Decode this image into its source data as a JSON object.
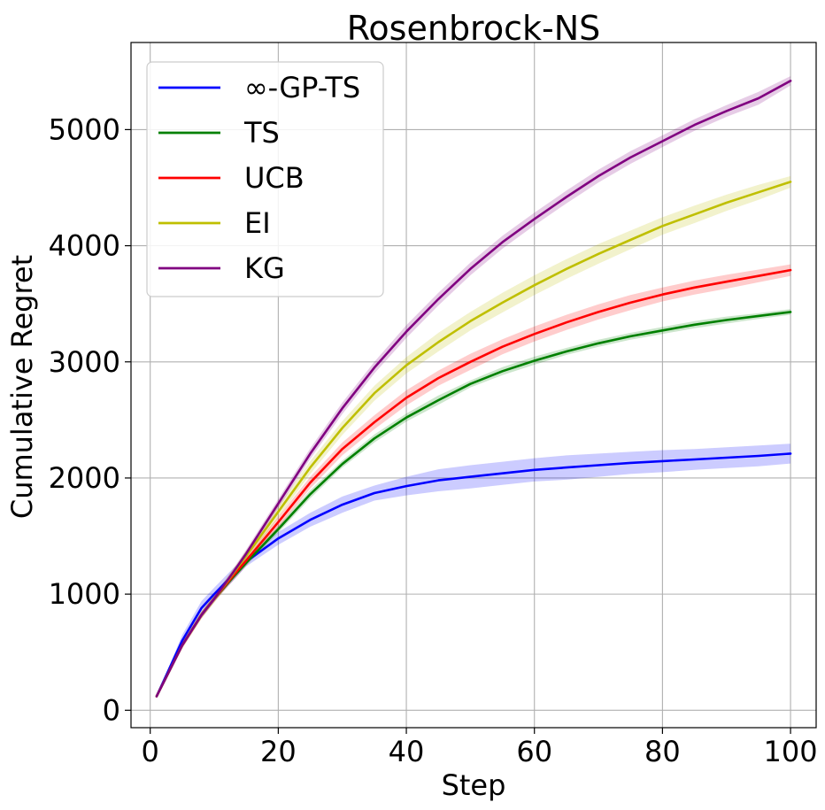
{
  "chart_data": {
    "type": "line",
    "title": "Rosenbrock-NS",
    "xlabel": "Step",
    "ylabel": "Cumulative Regret",
    "xlim": [
      -3,
      104
    ],
    "ylim": [
      -150,
      5750
    ],
    "xticks": [
      0,
      20,
      40,
      60,
      80,
      100
    ],
    "yticks": [
      0,
      1000,
      2000,
      3000,
      4000,
      5000
    ],
    "grid": true,
    "legend_position": "top-left",
    "x": [
      1,
      5,
      8,
      10,
      13,
      15,
      20,
      25,
      30,
      35,
      40,
      45,
      50,
      55,
      60,
      65,
      70,
      75,
      80,
      85,
      90,
      95,
      100
    ],
    "series": [
      {
        "name": "∞-GP-TS",
        "color": "#0000ff",
        "values": [
          120,
          600,
          880,
          1000,
          1170,
          1280,
          1480,
          1640,
          1770,
          1870,
          1930,
          1980,
          2010,
          2040,
          2070,
          2090,
          2110,
          2130,
          2145,
          2160,
          2175,
          2190,
          2210
        ],
        "band": [
          120,
          650,
          940,
          1055,
          1225,
          1320,
          1535,
          1700,
          1840,
          1935,
          2010,
          2075,
          2110,
          2140,
          2170,
          2195,
          2210,
          2225,
          2240,
          2250,
          2265,
          2280,
          2295
        ]
      },
      {
        "name": "TS",
        "color": "#008000",
        "values": [
          120,
          560,
          820,
          960,
          1150,
          1270,
          1560,
          1860,
          2120,
          2340,
          2520,
          2670,
          2810,
          2920,
          3010,
          3090,
          3160,
          3220,
          3270,
          3320,
          3360,
          3395,
          3430
        ],
        "band": [
          120,
          580,
          845,
          985,
          1175,
          1295,
          1590,
          1895,
          2150,
          2375,
          2555,
          2710,
          2840,
          2955,
          3045,
          3120,
          3190,
          3250,
          3300,
          3350,
          3390,
          3420,
          3455
        ]
      },
      {
        "name": "UCB",
        "color": "#ff0000",
        "values": [
          120,
          560,
          820,
          960,
          1160,
          1290,
          1620,
          1960,
          2250,
          2480,
          2690,
          2860,
          3000,
          3130,
          3240,
          3340,
          3430,
          3510,
          3580,
          3640,
          3690,
          3740,
          3790
        ],
        "band": [
          120,
          590,
          850,
          990,
          1200,
          1335,
          1665,
          2010,
          2305,
          2540,
          2755,
          2925,
          3070,
          3195,
          3305,
          3405,
          3495,
          3575,
          3640,
          3700,
          3750,
          3795,
          3840
        ]
      },
      {
        "name": "EI",
        "color": "#bfbf00",
        "values": [
          120,
          560,
          820,
          960,
          1180,
          1330,
          1710,
          2090,
          2430,
          2730,
          2970,
          3170,
          3350,
          3510,
          3660,
          3800,
          3930,
          4050,
          4170,
          4270,
          4370,
          4460,
          4550
        ],
        "band": [
          120,
          585,
          850,
          995,
          1220,
          1375,
          1760,
          2145,
          2490,
          2795,
          3040,
          3250,
          3430,
          3595,
          3745,
          3885,
          4015,
          4130,
          4245,
          4345,
          4440,
          4525,
          4600
        ]
      },
      {
        "name": "KG",
        "color": "#800080",
        "values": [
          120,
          560,
          820,
          960,
          1190,
          1350,
          1780,
          2210,
          2600,
          2950,
          3260,
          3540,
          3800,
          4030,
          4230,
          4420,
          4600,
          4760,
          4900,
          5040,
          5160,
          5270,
          5420
        ],
        "band": [
          120,
          580,
          845,
          985,
          1220,
          1385,
          1820,
          2255,
          2650,
          3000,
          3315,
          3595,
          3855,
          4085,
          4285,
          4475,
          4655,
          4815,
          4950,
          5090,
          5210,
          5325,
          5460
        ]
      }
    ]
  }
}
